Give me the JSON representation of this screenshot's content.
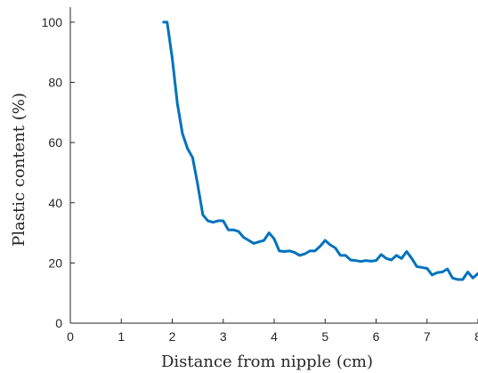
{
  "chart_data": {
    "type": "line",
    "title": "",
    "xlabel": "Distance from nipple (cm)",
    "ylabel": "Plastic content (%)",
    "xlim": [
      0,
      8
    ],
    "ylim": [
      0,
      105
    ],
    "xticks": [
      "0",
      "1",
      "2",
      "3",
      "4",
      "5",
      "6",
      "7",
      "8"
    ],
    "yticks": [
      "0",
      "20",
      "40",
      "60",
      "80",
      "100"
    ],
    "grid": false,
    "series": [
      {
        "color": "#0072BD",
        "x": [
          1.83,
          1.9,
          2.0,
          2.1,
          2.2,
          2.3,
          2.4,
          2.5,
          2.6,
          2.7,
          2.8,
          2.9,
          3.0,
          3.1,
          3.2,
          3.3,
          3.4,
          3.5,
          3.6,
          3.7,
          3.8,
          3.9,
          4.0,
          4.1,
          4.2,
          4.3,
          4.4,
          4.5,
          4.6,
          4.7,
          4.8,
          4.9,
          5.0,
          5.1,
          5.2,
          5.3,
          5.4,
          5.5,
          5.6,
          5.7,
          5.8,
          5.9,
          6.0,
          6.1,
          6.2,
          6.3,
          6.4,
          6.5,
          6.6,
          6.7,
          6.8,
          6.9,
          7.0,
          7.1,
          7.2,
          7.3,
          7.4,
          7.5,
          7.6,
          7.7,
          7.8,
          7.9,
          8.0
        ],
        "y": [
          100,
          100,
          88,
          73,
          63,
          58,
          55,
          46,
          36,
          34,
          33.5,
          34,
          34,
          31,
          31,
          30.5,
          28.5,
          27.5,
          26.5,
          27,
          27.5,
          30,
          28,
          24,
          23.8,
          24,
          23.5,
          22.5,
          23,
          24,
          24,
          25.5,
          27.5,
          26,
          25,
          22.5,
          22.5,
          21,
          20.8,
          20.5,
          20.8,
          20.6,
          20.8,
          22.8,
          21.5,
          21,
          22.5,
          21.5,
          23.8,
          21.5,
          18.8,
          18.5,
          18.2,
          16,
          16.8,
          17,
          18,
          15,
          14.5,
          14.5,
          17,
          15,
          16.5
        ]
      }
    ]
  }
}
